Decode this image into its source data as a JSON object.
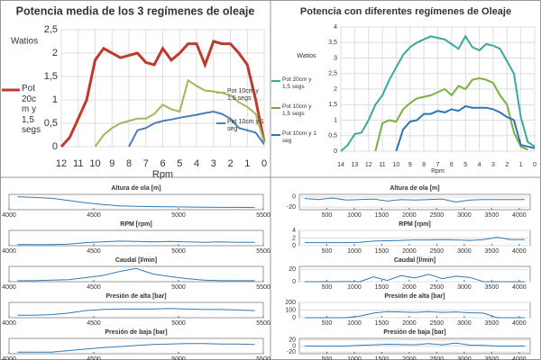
{
  "chart_data": [
    {
      "type": "line",
      "title": "Potencia media de los 3 regímenes de oleaje",
      "ylabel": "Watios",
      "xlabel": "Rpm",
      "xlim": [
        12,
        0
      ],
      "xticks": [
        12,
        11,
        10,
        9,
        8,
        7,
        6,
        5,
        4,
        3,
        2,
        1,
        0
      ],
      "ylim": [
        0,
        2.5
      ],
      "yticks": [
        0,
        {
          "value": 0.5,
          "label": "0,5"
        },
        1,
        {
          "value": 1.5,
          "label": "1,5"
        },
        2,
        {
          "value": 2.5,
          "label": "2,5"
        }
      ],
      "grid": true,
      "series": [
        {
          "name": "Pot 20c m y 1,5 segs",
          "color": "#c0392b",
          "x": [
            12,
            11.5,
            11,
            10.5,
            10,
            9.5,
            9,
            8.5,
            8,
            7.5,
            7,
            6.5,
            6,
            5.5,
            5,
            4.5,
            4,
            3.5,
            3,
            2.5,
            2,
            1.5,
            1,
            0.5,
            0
          ],
          "values": [
            0,
            0.2,
            0.6,
            1.0,
            1.85,
            2.1,
            2.0,
            1.9,
            1.95,
            2.0,
            1.8,
            1.75,
            2.1,
            1.85,
            2.0,
            2.2,
            2.2,
            1.75,
            2.25,
            2.2,
            2.2,
            2.0,
            1.75,
            1.0,
            0.1
          ]
        },
        {
          "name": "Pot 10cm y 1,5 segs",
          "color": "#9bbb59",
          "x": [
            10,
            9.5,
            9,
            8.5,
            8,
            7.5,
            7,
            6.5,
            6,
            5.5,
            5,
            4.5,
            4,
            3.5,
            3,
            2.5,
            2,
            1.5,
            1,
            0.5,
            0
          ],
          "values": [
            0,
            0.25,
            0.4,
            0.5,
            0.55,
            0.6,
            0.6,
            0.7,
            0.9,
            0.8,
            0.75,
            1.42,
            1.3,
            1.2,
            1.18,
            1.15,
            1.1,
            0.95,
            0.85,
            0.7,
            0.1
          ]
        },
        {
          "name": "Pot 10cm y 1 seg",
          "color": "#4a7ebb",
          "x": [
            8,
            7.5,
            7,
            6.5,
            6,
            5.5,
            5,
            4.5,
            4,
            3.5,
            3,
            2.5,
            2,
            1.5,
            1,
            0.5,
            0
          ],
          "values": [
            0,
            0.35,
            0.4,
            0.5,
            0.55,
            0.58,
            0.62,
            0.65,
            0.68,
            0.72,
            0.75,
            0.7,
            0.6,
            0.4,
            0.35,
            0.3,
            0.05
          ]
        }
      ]
    },
    {
      "type": "line",
      "title": "Potencia con diferentes regímenes de Oleaje",
      "ylabel": "Watios",
      "xlabel": "Rpm",
      "legend": "left",
      "xlim": [
        14,
        0
      ],
      "xticks": [
        14,
        13,
        12,
        11,
        10,
        9,
        8,
        7,
        6,
        5,
        4,
        3,
        2,
        1,
        0
      ],
      "ylim": [
        0,
        4
      ],
      "yticks": [
        0,
        {
          "value": 0.5,
          "label": "0,5"
        },
        1,
        {
          "value": 1.5,
          "label": "1,5"
        },
        2,
        {
          "value": 2.5,
          "label": "2,5"
        },
        3,
        {
          "value": 3.5,
          "label": "3,5"
        },
        4
      ],
      "grid": true,
      "series": [
        {
          "name": "Pot 20cm y 1,5 segs",
          "color": "#3aa89a",
          "x": [
            14,
            13.5,
            13,
            12.5,
            12,
            11.5,
            11,
            10.5,
            10,
            9.5,
            9,
            8.5,
            8,
            7.5,
            7,
            6.5,
            6,
            5.5,
            5,
            4.5,
            4,
            3.5,
            3,
            2.5,
            2,
            1.5,
            1,
            0.5,
            0
          ],
          "values": [
            0,
            0.2,
            0.55,
            0.6,
            1.0,
            1.5,
            1.8,
            2.3,
            2.7,
            3.1,
            3.35,
            3.5,
            3.6,
            3.7,
            3.65,
            3.6,
            3.45,
            3.3,
            3.7,
            3.35,
            3.25,
            3.45,
            3.4,
            3.3,
            2.9,
            2.5,
            1.1,
            0.3,
            0.15
          ]
        },
        {
          "name": "Pot 10cm y 1,5 segs",
          "color": "#7ab040",
          "x": [
            11.5,
            11,
            10.5,
            10,
            9.5,
            9,
            8.5,
            8,
            7.5,
            7,
            6.5,
            6,
            5.5,
            5,
            4.5,
            4,
            3.5,
            3,
            2.5,
            2,
            1.5,
            1,
            0.5
          ],
          "values": [
            0,
            0.9,
            1.0,
            0.95,
            1.35,
            1.55,
            1.7,
            1.75,
            1.8,
            1.9,
            2.0,
            1.8,
            2.1,
            2.0,
            2.3,
            2.35,
            2.3,
            2.2,
            1.8,
            1.5,
            0.6,
            0.15,
            0.05
          ]
        },
        {
          "name": "Pot 10cm y 1 seg",
          "color": "#2e75b6",
          "x": [
            10,
            9.5,
            9,
            8.5,
            8,
            7.5,
            7,
            6.5,
            6,
            5.5,
            5,
            4.5,
            4,
            3.5,
            3,
            2.5,
            2,
            1.5,
            1,
            0.5,
            0
          ],
          "values": [
            0,
            0.7,
            0.95,
            1.0,
            1.2,
            1.2,
            1.3,
            1.25,
            1.35,
            1.3,
            1.45,
            1.4,
            1.4,
            1.4,
            1.35,
            1.25,
            1.1,
            1.0,
            0.2,
            0.15,
            0.1
          ]
        }
      ]
    },
    {
      "type": "line",
      "title": "Altura de ola [m]",
      "xlim": [
        4000,
        5500
      ],
      "xticks": [
        4000,
        4500,
        5000,
        5500
      ],
      "ylim": [
        0,
        2
      ],
      "color": "#2f7ab5",
      "x": [
        4050,
        4150,
        4250,
        4350,
        4450,
        4550,
        4650,
        4750,
        4850,
        4950,
        5050,
        5150,
        5250,
        5350,
        5450
      ],
      "values": [
        1.7,
        1.6,
        1.5,
        1.2,
        0.9,
        0.7,
        0.5,
        0.45,
        0.4,
        0.38,
        0.35,
        0.33,
        0.3,
        0.3,
        0.28
      ]
    },
    {
      "type": "line",
      "title": "RPM [rpm]",
      "xlim": [
        4000,
        5500
      ],
      "xticks": [
        4000,
        4500,
        5000,
        5500
      ],
      "ylim": [
        0,
        4
      ],
      "color": "#2f7ab5",
      "x": [
        4050,
        4150,
        4250,
        4350,
        4450,
        4550,
        4650,
        4750,
        4850,
        4950,
        5050,
        5150,
        5250,
        5350,
        5450
      ],
      "values": [
        0.3,
        0.3,
        0.3,
        0.4,
        0.8,
        1.0,
        1.2,
        1.1,
        1.0,
        1.1,
        1.0,
        0.9,
        1.0,
        0.9,
        0.9
      ]
    },
    {
      "type": "line",
      "title": "Caudal [l/min]",
      "xlim": [
        4000,
        5500
      ],
      "xticks": [
        4000,
        4500,
        5000,
        5500
      ],
      "ylim": [
        0,
        3
      ],
      "color": "#2f7ab5",
      "x": [
        4050,
        4150,
        4250,
        4350,
        4450,
        4550,
        4650,
        4750,
        4850,
        4950,
        5050,
        5150,
        5250,
        5350,
        5450
      ],
      "values": [
        0.2,
        0.2,
        0.3,
        0.4,
        0.8,
        1.2,
        2.0,
        2.6,
        1.5,
        1.0,
        0.6,
        0.3,
        0.2,
        0.2,
        0.2
      ]
    },
    {
      "type": "line",
      "title": "Presión de alta [bar]",
      "xlim": [
        4000,
        5500
      ],
      "xticks": [
        4000,
        4500,
        5000,
        5500
      ],
      "ylim": [
        0,
        3
      ],
      "color": "#2f7ab5",
      "x": [
        4050,
        4150,
        4250,
        4350,
        4450,
        4550,
        4650,
        4750,
        4850,
        4950,
        5050,
        5150,
        5250,
        5350,
        5450
      ],
      "values": [
        0.5,
        0.5,
        0.6,
        0.9,
        1.4,
        1.6,
        1.7,
        1.7,
        1.7,
        1.8,
        1.7,
        1.6,
        1.6,
        1.5,
        1.4
      ]
    },
    {
      "type": "line",
      "title": "Presión de baja [bar]",
      "xlim": [
        4000,
        5500
      ],
      "xticks": [
        4000,
        4500,
        5000,
        5500
      ],
      "ylim": [
        0,
        3
      ],
      "color": "#2f7ab5",
      "x": [
        4050,
        4150,
        4250,
        4350,
        4450,
        4550,
        4650,
        4750,
        4850,
        4950,
        5050,
        5150,
        5250,
        5350,
        5450
      ],
      "values": [
        0.3,
        0.3,
        0.3,
        0.6,
        0.9,
        1.2,
        1.4,
        1.6,
        1.8,
        1.9,
        2.0,
        2.0,
        1.9,
        1.9,
        1.8
      ]
    },
    {
      "type": "line",
      "title": "Altura de ola [m]",
      "xlim": [
        0,
        4200
      ],
      "xticks": [
        500,
        1000,
        1500,
        2000,
        2500,
        3000,
        3500,
        4000
      ],
      "ylim": [
        -25,
        5
      ],
      "yticks": [
        -20,
        0
      ],
      "color": "#2f7ab5",
      "x": [
        100,
        350,
        600,
        850,
        1100,
        1350,
        1600,
        1850,
        2100,
        2350,
        2600,
        2850,
        3100,
        3350,
        3600,
        3850,
        4100
      ],
      "values": [
        -3,
        -5,
        -2,
        -6,
        -5,
        -4,
        -8,
        -5,
        -6,
        -5,
        -4,
        -10,
        -6,
        -5,
        -5,
        -5,
        -5
      ]
    },
    {
      "type": "line",
      "title": "RPM [rpm]",
      "xlim": [
        0,
        4200
      ],
      "xticks": [
        500,
        1000,
        1500,
        2000,
        2500,
        3000,
        3500,
        4000
      ],
      "ylim": [
        0,
        4
      ],
      "yticks": [
        0,
        2,
        4
      ],
      "color": "#2f7ab5",
      "x": [
        100,
        350,
        600,
        850,
        1100,
        1350,
        1600,
        1850,
        2100,
        2350,
        2600,
        2850,
        3100,
        3350,
        3600,
        3850,
        4100
      ],
      "values": [
        0.8,
        0.8,
        0.8,
        0.8,
        0.9,
        1.2,
        1.3,
        1.4,
        1.5,
        1.5,
        1.6,
        1.5,
        1.4,
        1.6,
        2.2,
        1.6,
        1.6
      ]
    },
    {
      "type": "line",
      "title": "Caudal [l/min]",
      "xlim": [
        0,
        4200
      ],
      "xticks": [
        500,
        1000,
        1500,
        2000,
        2500,
        3000,
        3500,
        4000
      ],
      "ylim": [
        0,
        25
      ],
      "yticks": [
        0,
        20
      ],
      "color": "#2f7ab5",
      "x": [
        100,
        350,
        600,
        850,
        1100,
        1350,
        1600,
        1850,
        2100,
        2350,
        2600,
        2850,
        3100,
        3350,
        3600,
        3850,
        4100
      ],
      "values": [
        0,
        0,
        0,
        0.5,
        0,
        8,
        2,
        10,
        6,
        12,
        5,
        9,
        7,
        0,
        0,
        0,
        0
      ]
    },
    {
      "type": "line",
      "title": "Presión de alta [bar]",
      "xlim": [
        0,
        4200
      ],
      "xticks": [
        500,
        1000,
        1500,
        2000,
        2500,
        3000,
        3500,
        4000
      ],
      "ylim": [
        0,
        200
      ],
      "yticks": [
        0,
        100,
        200
      ],
      "color": "#2f7ab5",
      "x": [
        100,
        350,
        600,
        850,
        1100,
        1350,
        1600,
        1850,
        2100,
        2350,
        2600,
        2850,
        3100,
        3350,
        3600,
        3850,
        4100
      ],
      "values": [
        0,
        0,
        0,
        0,
        20,
        60,
        80,
        75,
        70,
        80,
        70,
        75,
        65,
        60,
        0,
        0,
        0
      ]
    },
    {
      "type": "line",
      "title": "Presión de baja [bar]",
      "xlim": [
        0,
        4200
      ],
      "xticks": [
        500,
        1000,
        1500,
        2000,
        2500,
        3000,
        3500,
        4000
      ],
      "ylim": [
        -25,
        25
      ],
      "yticks": [
        -20,
        0,
        20
      ],
      "color": "#2f7ab5",
      "x": [
        100,
        350,
        600,
        850,
        1100,
        1350,
        1600,
        1850,
        2100,
        2350,
        2600,
        2850,
        3100,
        3350,
        3600,
        3850,
        4100
      ],
      "values": [
        0,
        0,
        0,
        0,
        2,
        4,
        6,
        5,
        4,
        8,
        4,
        10,
        3,
        2,
        0,
        0,
        0
      ]
    }
  ]
}
